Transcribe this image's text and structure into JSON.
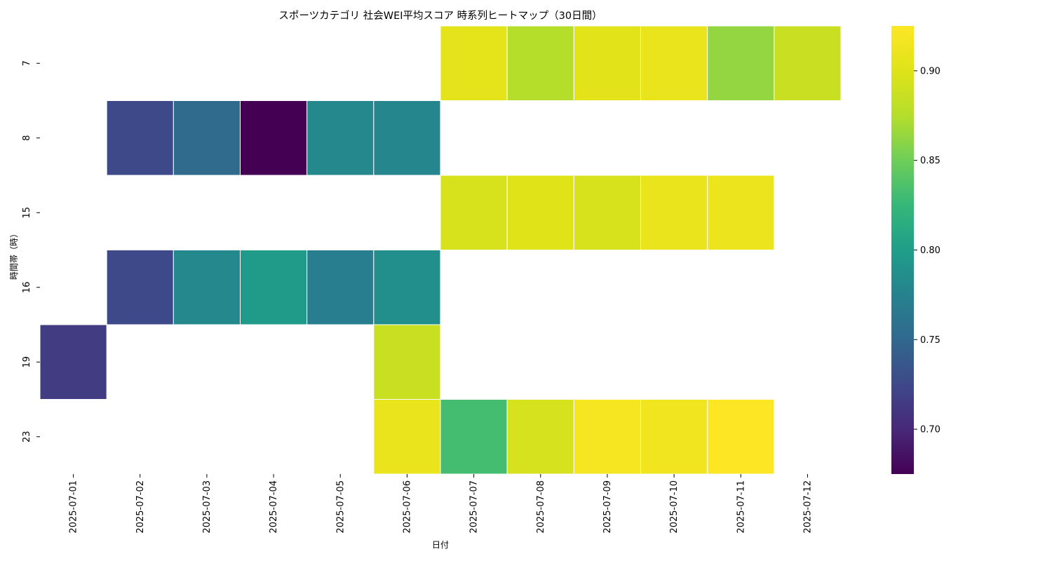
{
  "chart_data": {
    "type": "heatmap",
    "title": "スポーツカテゴリ 社会WEI平均スコア 時系列ヒートマップ（30日間）",
    "xlabel": "日付",
    "ylabel": "時間帯（時）",
    "x": [
      "2025-07-01",
      "2025-07-02",
      "2025-07-03",
      "2025-07-04",
      "2025-07-05",
      "2025-07-06",
      "2025-07-07",
      "2025-07-08",
      "2025-07-09",
      "2025-07-10",
      "2025-07-11",
      "2025-07-12"
    ],
    "y": [
      "7",
      "8",
      "15",
      "16",
      "19",
      "23"
    ],
    "values": [
      [
        null,
        null,
        null,
        null,
        null,
        null,
        0.905,
        0.875,
        0.903,
        0.908,
        0.863,
        0.887
      ],
      [
        null,
        0.725,
        0.753,
        0.675,
        0.78,
        0.779,
        null,
        null,
        null,
        null,
        null,
        null
      ],
      [
        null,
        null,
        null,
        null,
        null,
        null,
        0.895,
        0.9,
        0.895,
        0.908,
        0.911,
        null
      ],
      [
        null,
        0.725,
        0.78,
        0.797,
        0.77,
        0.787,
        null,
        null,
        null,
        null,
        null,
        null
      ],
      [
        0.715,
        null,
        null,
        null,
        null,
        0.887,
        null,
        null,
        null,
        null,
        null,
        null
      ],
      [
        null,
        null,
        null,
        null,
        null,
        0.908,
        0.832,
        0.894,
        0.918,
        0.914,
        0.925,
        null
      ]
    ],
    "colormap": "viridis",
    "colorbar": {
      "min": 0.675,
      "max": 0.925,
      "ticks": [
        "0.70",
        "0.75",
        "0.80",
        "0.85",
        "0.90"
      ]
    }
  }
}
